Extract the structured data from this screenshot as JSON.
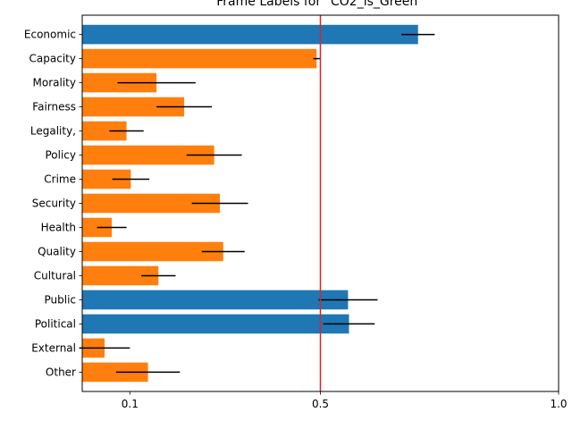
{
  "chart_data": {
    "type": "bar",
    "orientation": "horizontal",
    "title": "Frame Labels for \"CO2_is_Green\"",
    "xlabel": "",
    "ylabel": "",
    "xlim": [
      0.0,
      1.0
    ],
    "x_ticks": [
      0.1,
      0.5,
      1.0
    ],
    "x_tick_labels": [
      "0.1",
      "0.5",
      "1.0"
    ],
    "grid": false,
    "legend": "none",
    "reference_line": {
      "x": 0.5,
      "color": "#d62728"
    },
    "colors": {
      "above": "#1f77b4",
      "below": "#ff7f0e",
      "error": "#000000"
    },
    "categories": [
      "Economic",
      "Capacity",
      "Morality",
      "Fairness",
      "Legality,",
      "Policy",
      "Crime",
      "Security",
      "Health",
      "Quality",
      "Cultural",
      "Public",
      "Political",
      "External",
      "Other"
    ],
    "values": [
      0.705,
      0.492,
      0.156,
      0.214,
      0.093,
      0.277,
      0.102,
      0.289,
      0.062,
      0.296,
      0.16,
      0.558,
      0.56,
      0.047,
      0.138
    ],
    "error": [
      0.035,
      0.007,
      0.082,
      0.058,
      0.036,
      0.058,
      0.039,
      0.059,
      0.031,
      0.045,
      0.036,
      0.062,
      0.054,
      0.053,
      0.067
    ],
    "bar_color_keys": [
      "above",
      "below",
      "below",
      "below",
      "below",
      "below",
      "below",
      "below",
      "below",
      "below",
      "below",
      "above",
      "above",
      "below",
      "below"
    ]
  }
}
